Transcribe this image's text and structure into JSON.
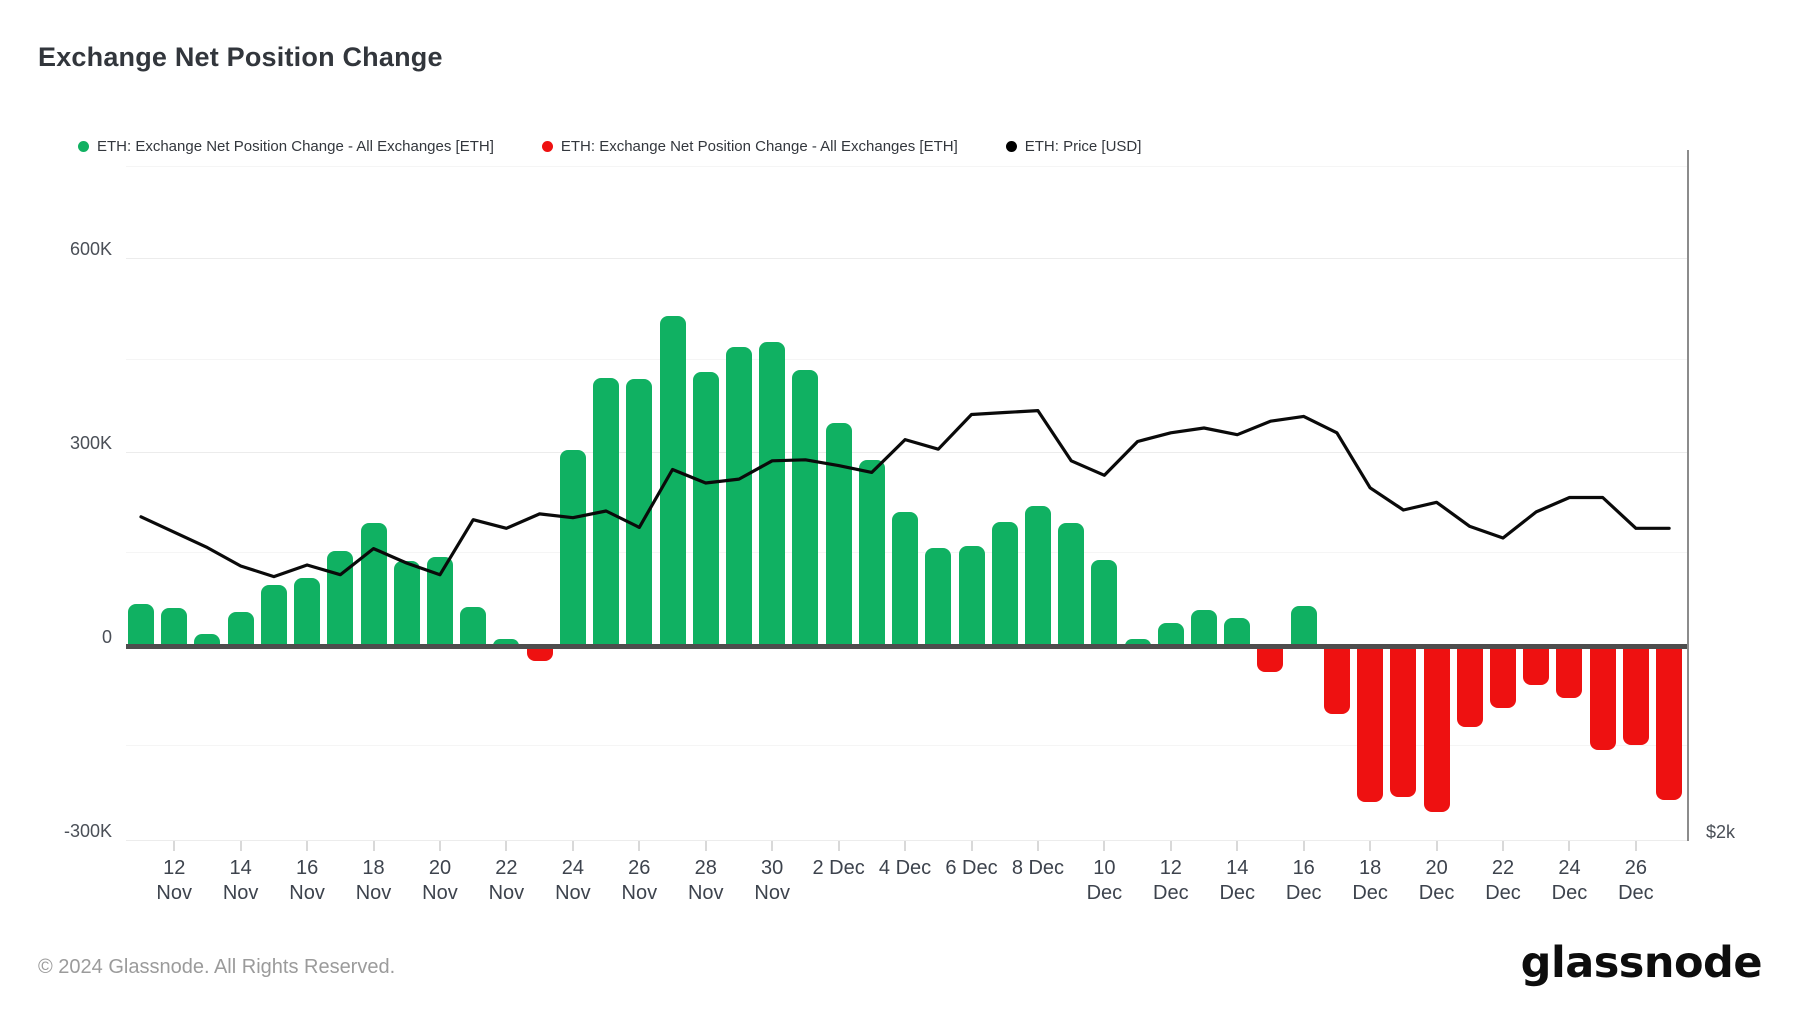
{
  "title": "Exchange Net Position Change",
  "legend": [
    {
      "label": "ETH: Exchange Net Position Change - All Exchanges [ETH]",
      "color": "#10b162"
    },
    {
      "label": "ETH: Exchange Net Position Change - All Exchanges [ETH]",
      "color": "#ee1111"
    },
    {
      "label": "ETH: Price [USD]",
      "color": "#000000"
    }
  ],
  "footer": {
    "copyright": "© 2024 Glassnode. All Rights Reserved.",
    "brand": "glassnode"
  },
  "colors": {
    "bar_positive": "#10b162",
    "bar_negative": "#ee1111",
    "price_line": "#0a0a0a"
  },
  "chart_data": {
    "type": "bar",
    "title": "Exchange Net Position Change",
    "x_dates": [
      "11 Nov",
      "12 Nov",
      "13 Nov",
      "14 Nov",
      "15 Nov",
      "16 Nov",
      "17 Nov",
      "18 Nov",
      "19 Nov",
      "20 Nov",
      "21 Nov",
      "22 Nov",
      "23 Nov",
      "24 Nov",
      "25 Nov",
      "26 Nov",
      "27 Nov",
      "28 Nov",
      "29 Nov",
      "30 Nov",
      "1 Dec",
      "2 Dec",
      "3 Dec",
      "4 Dec",
      "5 Dec",
      "6 Dec",
      "7 Dec",
      "8 Dec",
      "9 Dec",
      "10 Dec",
      "11 Dec",
      "12 Dec",
      "13 Dec",
      "14 Dec",
      "15 Dec",
      "16 Dec",
      "17 Dec",
      "18 Dec",
      "19 Dec",
      "20 Dec",
      "21 Dec",
      "22 Dec",
      "23 Dec",
      "24 Dec",
      "25 Dec",
      "26 Dec",
      "27 Dec"
    ],
    "series": [
      {
        "name": "ETH: Exchange Net Position Change - All Exchanges [ETH]",
        "type": "bar",
        "unit": "ETH (thousands)",
        "values_thousands": [
          65,
          58,
          18,
          52,
          95,
          105,
          147,
          190,
          132,
          137,
          60,
          11,
          -20,
          303,
          415,
          413,
          510,
          424,
          463,
          470,
          427,
          345,
          288,
          207,
          152,
          155,
          192,
          217,
          190,
          133,
          11,
          36,
          56,
          43,
          -37,
          62,
          -102,
          -238,
          -230,
          -254,
          -122,
          -93,
          -57,
          -77,
          -158,
          -150,
          -235
        ]
      },
      {
        "name": "ETH: Price [USD]",
        "type": "line",
        "unit": "USD (estimated from axis)",
        "values": [
          2336,
          2320,
          2304,
          2285,
          2274,
          2286,
          2276,
          2303,
          2288,
          2276,
          2333,
          2324,
          2339,
          2335,
          2342,
          2325,
          2385,
          2371,
          2375,
          2394,
          2395,
          2389,
          2382,
          2416,
          2406,
          2442,
          2444,
          2446,
          2394,
          2379,
          2414,
          2423,
          2428,
          2421,
          2435,
          2440,
          2423,
          2366,
          2343,
          2351,
          2326,
          2314,
          2341,
          2356,
          2356,
          2324,
          2324
        ]
      }
    ],
    "left_axis": {
      "unit": "ETH",
      "ticks": [
        {
          "label": "600K",
          "value_thousands": 600
        },
        {
          "label": "300K",
          "value_thousands": 300
        },
        {
          "label": "0",
          "value_thousands": 0
        },
        {
          "label": "-300K",
          "value_thousands": -300
        }
      ],
      "range_thousands": [
        -420,
        770
      ]
    },
    "right_axis": {
      "unit": "USD",
      "visible_label": {
        "text": "$2k",
        "value": 2000
      },
      "gridline_values": [
        2100,
        2300,
        2500,
        2700
      ]
    },
    "x_axis": {
      "ticks": [
        {
          "index": 1,
          "line1": "12",
          "line2": "Nov"
        },
        {
          "index": 3,
          "line1": "14",
          "line2": "Nov"
        },
        {
          "index": 5,
          "line1": "16",
          "line2": "Nov"
        },
        {
          "index": 7,
          "line1": "18",
          "line2": "Nov"
        },
        {
          "index": 9,
          "line1": "20",
          "line2": "Nov"
        },
        {
          "index": 11,
          "line1": "22",
          "line2": "Nov"
        },
        {
          "index": 13,
          "line1": "24",
          "line2": "Nov"
        },
        {
          "index": 15,
          "line1": "26",
          "line2": "Nov"
        },
        {
          "index": 17,
          "line1": "28",
          "line2": "Nov"
        },
        {
          "index": 19,
          "line1": "30",
          "line2": "Nov"
        },
        {
          "index": 21,
          "line1": "2 Dec",
          "line2": ""
        },
        {
          "index": 23,
          "line1": "4 Dec",
          "line2": ""
        },
        {
          "index": 25,
          "line1": "6 Dec",
          "line2": ""
        },
        {
          "index": 27,
          "line1": "8 Dec",
          "line2": ""
        },
        {
          "index": 29,
          "line1": "10",
          "line2": "Dec"
        },
        {
          "index": 31,
          "line1": "12",
          "line2": "Dec"
        },
        {
          "index": 33,
          "line1": "14",
          "line2": "Dec"
        },
        {
          "index": 35,
          "line1": "16",
          "line2": "Dec"
        },
        {
          "index": 37,
          "line1": "18",
          "line2": "Dec"
        },
        {
          "index": 39,
          "line1": "20",
          "line2": "Dec"
        },
        {
          "index": 41,
          "line1": "22",
          "line2": "Dec"
        },
        {
          "index": 43,
          "line1": "24",
          "line2": "Dec"
        },
        {
          "index": 45,
          "line1": "26",
          "line2": "Dec"
        }
      ]
    },
    "legend_position": "top-left",
    "grid": "horizontal-only"
  }
}
